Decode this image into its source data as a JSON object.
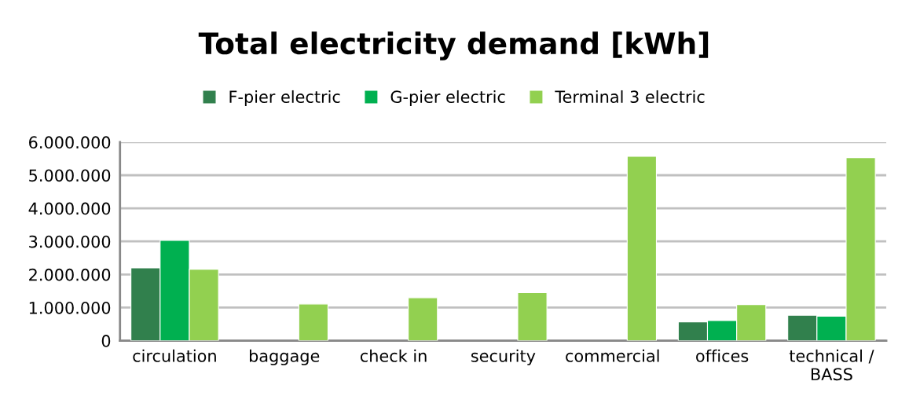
{
  "chart_data": {
    "type": "bar",
    "title": "Total electricity demand [kWh]",
    "categories": [
      "circulation",
      "baggage",
      "check in",
      "security",
      "commercial",
      "offices",
      "technical / BASS"
    ],
    "series": [
      {
        "name": "F-pier electric",
        "color": "#31804d",
        "values": [
          2200000,
          null,
          null,
          null,
          null,
          570000,
          770000
        ]
      },
      {
        "name": "G-pier electric",
        "color": "#00b050",
        "values": [
          3030000,
          null,
          null,
          null,
          null,
          610000,
          740000
        ]
      },
      {
        "name": "Terminal 3 electric",
        "color": "#92d050",
        "values": [
          2160000,
          1110000,
          1300000,
          1450000,
          5570000,
          1090000,
          5530000
        ]
      }
    ],
    "ylim": [
      0,
      6000000
    ],
    "yticks": [
      {
        "value": 0,
        "label": "0"
      },
      {
        "value": 1000000,
        "label": "1.000.000"
      },
      {
        "value": 2000000,
        "label": "2.000.000"
      },
      {
        "value": 3000000,
        "label": "3.000.000"
      },
      {
        "value": 4000000,
        "label": "4.000.000"
      },
      {
        "value": 5000000,
        "label": "5.000.000"
      },
      {
        "value": 6000000,
        "label": "6.000.000"
      }
    ],
    "grid": "y",
    "legend": "top"
  }
}
